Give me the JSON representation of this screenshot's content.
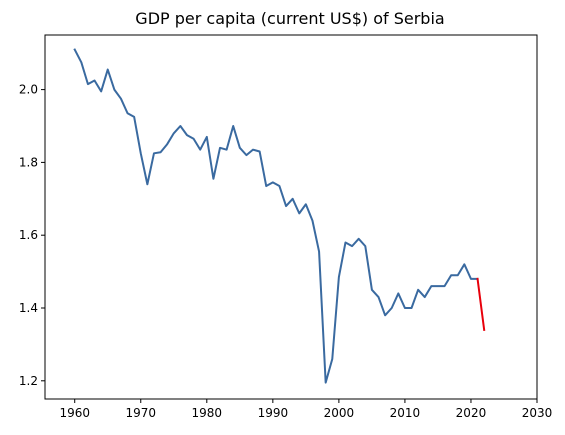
{
  "chart_data": {
    "type": "line",
    "title": "GDP per capita (current US$) of Serbia",
    "xlabel": "",
    "ylabel": "",
    "xlim": [
      1955.5,
      2030
    ],
    "ylim": [
      1.15,
      2.15
    ],
    "xticks": [
      1960,
      1970,
      1980,
      1990,
      2000,
      2010,
      2020,
      2030
    ],
    "yticks": [
      1.2,
      1.4,
      1.6,
      1.8,
      2.0
    ],
    "ytick_labels": [
      "1.2",
      "1.4",
      "1.6",
      "1.8",
      "2.0"
    ],
    "grid": false,
    "series": [
      {
        "color": "#3a6aa0",
        "x": [
          1960,
          1961,
          1962,
          1963,
          1964,
          1965,
          1966,
          1967,
          1968,
          1969,
          1970,
          1971,
          1972,
          1973,
          1974,
          1975,
          1976,
          1977,
          1978,
          1979,
          1980,
          1981,
          1982,
          1983,
          1984,
          1985,
          1986,
          1987,
          1988,
          1989,
          1990,
          1991,
          1992,
          1993,
          1994,
          1995,
          1996,
          1997,
          1998,
          1999,
          2000,
          2001,
          2002,
          2003,
          2004,
          2005,
          2006,
          2007,
          2008,
          2009,
          2010,
          2011,
          2012,
          2013,
          2014,
          2015,
          2016,
          2017,
          2018,
          2019,
          2020,
          2021
        ],
        "y": [
          2.11,
          2.075,
          2.015,
          2.025,
          1.995,
          2.055,
          2.0,
          1.975,
          1.935,
          1.925,
          1.825,
          1.74,
          1.825,
          1.828,
          1.85,
          1.88,
          1.9,
          1.875,
          1.865,
          1.835,
          1.87,
          1.755,
          1.84,
          1.835,
          1.9,
          1.84,
          1.82,
          1.835,
          1.83,
          1.735,
          1.745,
          1.735,
          1.68,
          1.7,
          1.66,
          1.685,
          1.64,
          1.555,
          1.195,
          1.26,
          1.485,
          1.58,
          1.57,
          1.59,
          1.57,
          1.45,
          1.43,
          1.38,
          1.4,
          1.44,
          1.4,
          1.4,
          1.45,
          1.43,
          1.46,
          1.46,
          1.46,
          1.49,
          1.49,
          1.52,
          1.48,
          1.48
        ]
      },
      {
        "color": "#e8000b",
        "x": [
          2021,
          2022
        ],
        "y": [
          1.48,
          1.34
        ]
      }
    ]
  }
}
